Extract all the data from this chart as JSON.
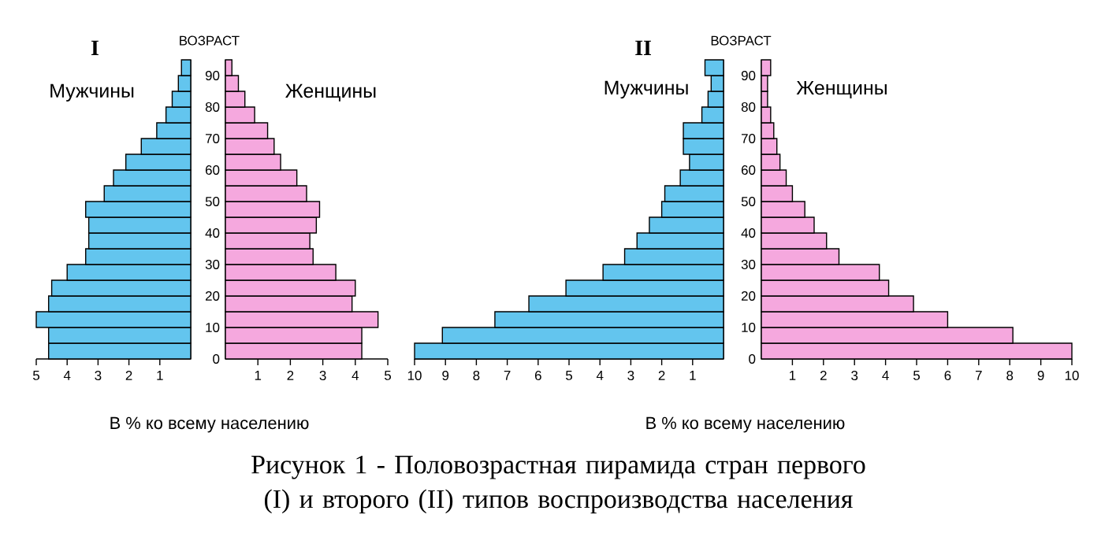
{
  "chart_data": [
    {
      "type": "histogram",
      "orientation": "horizontal",
      "title": "I",
      "xlabel": "В % ко всему населению",
      "annotations": [
        "Мужчины",
        "Рисунок 1 - Половозрастная пирамида стран первого (I) и второго (II) типов воспроизводства населения"
      ],
      "bins": [
        0,
        5,
        10,
        15,
        20,
        25,
        30,
        35,
        40,
        45,
        50,
        55,
        60,
        65,
        70,
        75,
        80,
        85,
        90,
        95
      ],
      "values": [
        4.6,
        4.6,
        5.0,
        4.6,
        4.5,
        4.0,
        3.4,
        3.3,
        3.3,
        3.4,
        2.8,
        2.5,
        2.1,
        1.6,
        1.1,
        0.8,
        0.6,
        0.4,
        0.3
      ],
      "color": "#63c5ee",
      "xlim": [
        5,
        0
      ],
      "xticks": [
        5,
        4,
        3,
        2,
        1
      ],
      "ylim": [
        0,
        95
      ],
      "yticks": [
        0,
        10,
        20,
        30,
        40,
        50,
        60,
        70,
        80,
        90
      ],
      "tick_labels": "x"
    },
    {
      "type": "histogram",
      "orientation": "horizontal",
      "ylabel": "ВОЗРАСТ",
      "annotations": [
        "Женщины"
      ],
      "bins": [
        0,
        5,
        10,
        15,
        20,
        25,
        30,
        35,
        40,
        45,
        50,
        55,
        60,
        65,
        70,
        75,
        80,
        85,
        90,
        95
      ],
      "values": [
        4.2,
        4.2,
        4.7,
        3.9,
        4.0,
        3.4,
        2.7,
        2.6,
        2.8,
        2.9,
        2.5,
        2.2,
        1.7,
        1.5,
        1.3,
        0.9,
        0.6,
        0.4,
        0.2
      ],
      "color": "#f5a8de",
      "xlim": [
        0,
        5
      ],
      "xticks": [
        1,
        2,
        3,
        4,
        5
      ],
      "ylim": [
        0,
        95
      ],
      "yticks": [
        0,
        10,
        20,
        30,
        40,
        50,
        60,
        70,
        80,
        90
      ]
    },
    {
      "type": "histogram",
      "orientation": "horizontal",
      "title": "II",
      "xlabel": "В % ко всему населению",
      "annotations": [
        "Мужчины"
      ],
      "bins": [
        0,
        5,
        10,
        15,
        20,
        25,
        30,
        35,
        40,
        45,
        50,
        55,
        60,
        65,
        70,
        75,
        80,
        85,
        90,
        95
      ],
      "values": [
        10.0,
        9.1,
        7.4,
        6.3,
        5.1,
        3.9,
        3.2,
        2.8,
        2.4,
        2.0,
        1.9,
        1.4,
        1.1,
        1.3,
        1.3,
        0.7,
        0.5,
        0.4,
        0.6
      ],
      "color": "#63c5ee",
      "xlim": [
        10,
        0
      ],
      "xticks": [
        10,
        9,
        8,
        7,
        6,
        5,
        4,
        3,
        2,
        1
      ],
      "ylim": [
        0,
        95
      ],
      "yticks": [
        0,
        10,
        20,
        30,
        40,
        50,
        60,
        70,
        80,
        90
      ],
      "tick_labels": "x"
    },
    {
      "type": "histogram",
      "orientation": "horizontal",
      "ylabel": "ВОЗРАСТ",
      "annotations": [
        "Женщины"
      ],
      "bins": [
        0,
        5,
        10,
        15,
        20,
        25,
        30,
        35,
        40,
        45,
        50,
        55,
        60,
        65,
        70,
        75,
        80,
        85,
        90,
        95
      ],
      "values": [
        10.0,
        8.1,
        6.0,
        4.9,
        4.1,
        3.8,
        2.5,
        2.1,
        1.7,
        1.4,
        1.0,
        0.8,
        0.6,
        0.5,
        0.4,
        0.3,
        0.2,
        0.2,
        0.3
      ],
      "color": "#f5a8de",
      "xlim": [
        0,
        10
      ],
      "xticks": [
        1,
        2,
        3,
        4,
        5,
        6,
        7,
        8,
        9,
        10
      ],
      "ylim": [
        0,
        95
      ],
      "yticks": [
        0,
        10,
        20,
        30,
        40,
        50,
        60,
        70,
        80,
        90
      ]
    }
  ]
}
